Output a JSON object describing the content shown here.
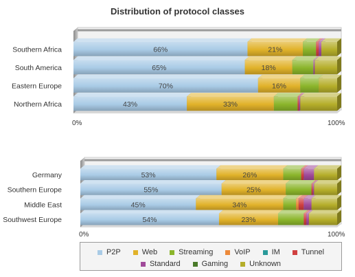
{
  "title": "Distribution of protocol classes",
  "colors": {
    "P2P": "#a9cbe6",
    "Web": "#e1b22a",
    "Streaming": "#8bb52b",
    "VoIP": "#ec8a3a",
    "IM": "#2a9a9a",
    "Tunnel": "#d04040",
    "Standard": "#a04a9a",
    "Gaming": "#4a7a2a",
    "Unknown": "#b5ae2a"
  },
  "legend": {
    "row1": [
      "P2P",
      "Web",
      "Streaming",
      "VoIP",
      "IM",
      "Tunnel"
    ],
    "row2": [
      "Standard",
      "Gaming",
      "Unknown"
    ]
  },
  "chart_data": [
    {
      "type": "bar",
      "stacked": true,
      "orientation": "horizontal",
      "categories": [
        "Southern Africa",
        "South America",
        "Eastern Europe",
        "Northern Africa"
      ],
      "xlim": [
        0,
        100
      ],
      "xticks": [
        "0%",
        "100%"
      ],
      "series": [
        {
          "name": "P2P",
          "values": [
            66,
            65,
            70,
            43
          ]
        },
        {
          "name": "Web",
          "values": [
            21,
            18,
            16,
            33
          ]
        },
        {
          "name": "Streaming",
          "values": [
            5,
            8,
            7,
            9
          ]
        },
        {
          "name": "VoIP",
          "values": [
            0,
            0,
            0,
            0
          ]
        },
        {
          "name": "IM",
          "values": [
            0,
            0,
            0,
            0
          ]
        },
        {
          "name": "Tunnel",
          "values": [
            1,
            0,
            0,
            0.5
          ]
        },
        {
          "name": "Standard",
          "values": [
            1,
            0.5,
            0,
            0.5
          ]
        },
        {
          "name": "Gaming",
          "values": [
            0,
            0,
            0,
            0
          ]
        },
        {
          "name": "Unknown",
          "values": [
            6,
            8.5,
            7,
            14
          ]
        }
      ],
      "data_labels": [
        [
          "66%",
          "21%"
        ],
        [
          "65%",
          "18%"
        ],
        [
          "70%",
          "16%"
        ],
        [
          "43%",
          "33%"
        ]
      ]
    },
    {
      "type": "bar",
      "stacked": true,
      "orientation": "horizontal",
      "categories": [
        "Germany",
        "Southern Europe",
        "Middle East",
        "Southwest Europe"
      ],
      "xlim": [
        0,
        100
      ],
      "xticks": [
        "0%",
        "100%"
      ],
      "series": [
        {
          "name": "P2P",
          "values": [
            53,
            55,
            45,
            54
          ]
        },
        {
          "name": "Web",
          "values": [
            26,
            25,
            34,
            23
          ]
        },
        {
          "name": "Streaming",
          "values": [
            7,
            10,
            5,
            10
          ]
        },
        {
          "name": "VoIP",
          "values": [
            0,
            0,
            1,
            0
          ]
        },
        {
          "name": "IM",
          "values": [
            0,
            0,
            0,
            0
          ]
        },
        {
          "name": "Tunnel",
          "values": [
            1,
            0.5,
            2,
            1
          ]
        },
        {
          "name": "Standard",
          "values": [
            4,
            0.5,
            3,
            1
          ]
        },
        {
          "name": "Gaming",
          "values": [
            0,
            0,
            0,
            0
          ]
        },
        {
          "name": "Unknown",
          "values": [
            9,
            9,
            10,
            11
          ]
        }
      ],
      "data_labels": [
        [
          "53%",
          "26%"
        ],
        [
          "55%",
          "25%"
        ],
        [
          "45%",
          "34%"
        ],
        [
          "54%",
          "23%"
        ]
      ]
    }
  ]
}
